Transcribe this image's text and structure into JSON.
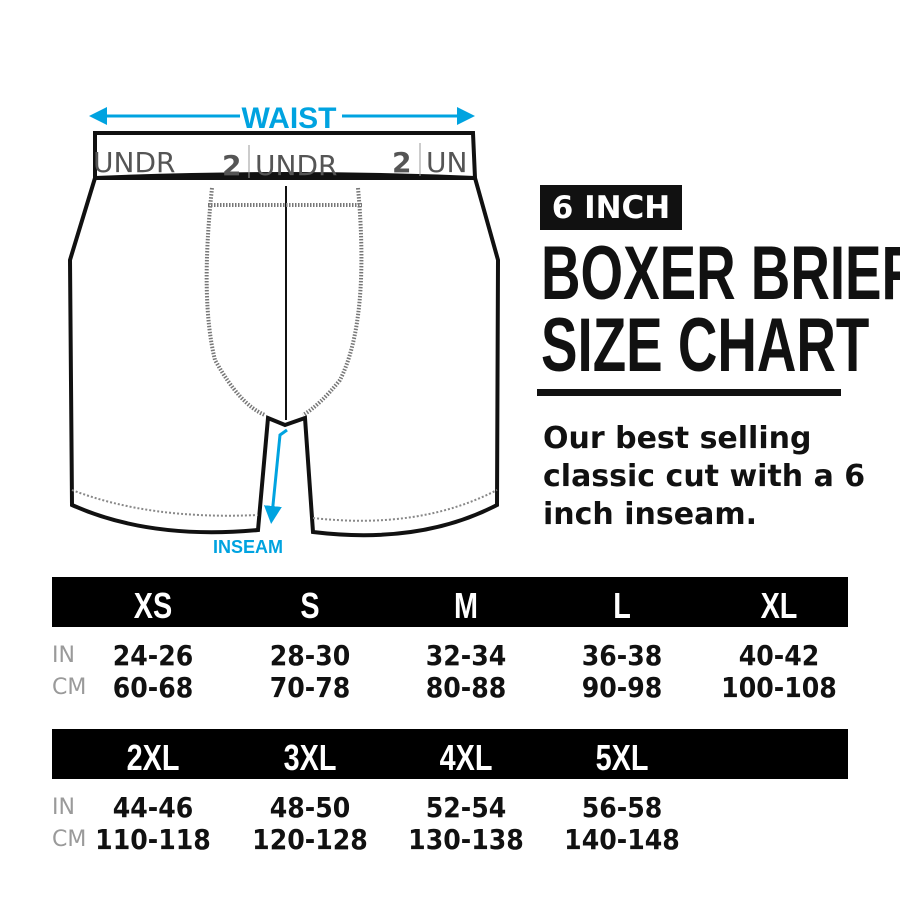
{
  "illustration": {
    "waist_label": "WAIST",
    "inseam_label": "INSEAM",
    "waistband_text": [
      "UNDR",
      "2",
      "UNDR",
      "2",
      "UN"
    ],
    "accent_color": "#00a3e0"
  },
  "header": {
    "badge": "6 INCH",
    "title_line1": "BOXER BRIEF",
    "title_line2": "SIZE CHART",
    "description": "Our best selling classic cut with a 6 inch inseam."
  },
  "table": {
    "row_labels": {
      "in": "IN",
      "cm": "CM"
    },
    "groups": [
      {
        "sizes": [
          {
            "size": "XS",
            "in": "24-26",
            "cm": "60-68"
          },
          {
            "size": "S",
            "in": "28-30",
            "cm": "70-78"
          },
          {
            "size": "M",
            "in": "32-34",
            "cm": "80-88"
          },
          {
            "size": "L",
            "in": "36-38",
            "cm": "90-98"
          },
          {
            "size": "XL",
            "in": "40-42",
            "cm": "100-108"
          }
        ]
      },
      {
        "sizes": [
          {
            "size": "2XL",
            "in": "44-46",
            "cm": "110-118"
          },
          {
            "size": "3XL",
            "in": "48-50",
            "cm": "120-128"
          },
          {
            "size": "4XL",
            "in": "52-54",
            "cm": "130-138"
          },
          {
            "size": "5XL",
            "in": "56-58",
            "cm": "140-148"
          }
        ]
      }
    ]
  }
}
